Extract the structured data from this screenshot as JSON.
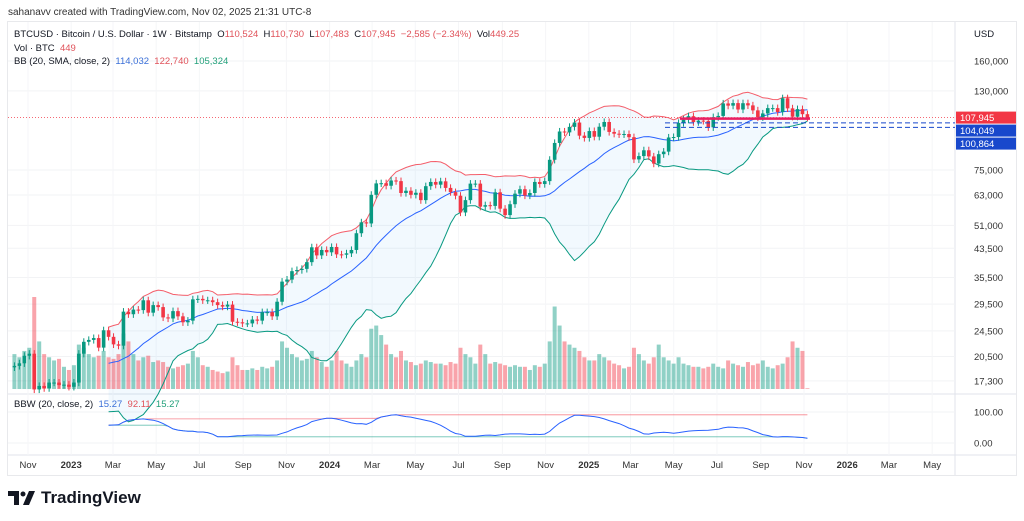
{
  "credit": "sahanavv created with TradingView.com, Nov 02, 2025 21:31 UTC-8",
  "legend": {
    "symbol": "BTCUSD · Bitcoin / U.S. Dollar · 1W · Bitstamp",
    "o_label": "O",
    "o": "110,524",
    "h_label": "H",
    "h": "110,730",
    "l_label": "L",
    "l": "107,483",
    "c_label": "C",
    "c": "107,945",
    "change": "−2,585 (−2.34%)",
    "vol_label": "Vol",
    "vol": "449.25",
    "vol_line": "Vol · BTC",
    "vol_value": "449",
    "bb_label": "BB (20, SMA, close, 2)",
    "bb_basis": "114,032",
    "bb_upper": "122,740",
    "bb_lower": "105,324"
  },
  "bbw_legend": {
    "label": "BBW (20, close, 2)",
    "bbw": "15.27",
    "highest": "92.11",
    "lowest": "15.27"
  },
  "axis": {
    "currency": "USD",
    "price_ticks": [
      "160,000",
      "130,000",
      "75,000",
      "63,000",
      "51,000",
      "43,500",
      "35,500",
      "29,500",
      "24,500",
      "20,500",
      "17,300"
    ],
    "bbw_ticks": [
      "100.00",
      "0.00"
    ],
    "time_ticks": [
      {
        "label": "Nov",
        "date": "2022-11-01"
      },
      {
        "label": "2023",
        "date": "2023-01-01",
        "bold": true
      },
      {
        "label": "Mar",
        "date": "2023-03-01"
      },
      {
        "label": "May",
        "date": "2023-05-01"
      },
      {
        "label": "Jul",
        "date": "2023-07-01"
      },
      {
        "label": "Sep",
        "date": "2023-09-01"
      },
      {
        "label": "Nov",
        "date": "2023-11-01"
      },
      {
        "label": "2024",
        "date": "2024-01-01",
        "bold": true
      },
      {
        "label": "Mar",
        "date": "2024-03-01"
      },
      {
        "label": "May",
        "date": "2024-05-01"
      },
      {
        "label": "Jul",
        "date": "2024-07-01"
      },
      {
        "label": "Sep",
        "date": "2024-09-01"
      },
      {
        "label": "Nov",
        "date": "2024-11-01"
      },
      {
        "label": "2025",
        "date": "2025-01-01",
        "bold": true
      },
      {
        "label": "Mar",
        "date": "2025-03-01"
      },
      {
        "label": "May",
        "date": "2025-05-01"
      },
      {
        "label": "Jul",
        "date": "2025-07-01"
      },
      {
        "label": "Sep",
        "date": "2025-09-01"
      },
      {
        "label": "Nov",
        "date": "2025-11-01"
      },
      {
        "label": "2026",
        "date": "2026-01-01",
        "bold": true
      },
      {
        "label": "Mar",
        "date": "2026-03-01"
      },
      {
        "label": "May",
        "date": "2026-05-01"
      }
    ]
  },
  "price_labels": [
    {
      "value": 107945,
      "text": "107,945",
      "color": "#f23645"
    },
    {
      "value": 104049,
      "text": "104,049",
      "color": "#1848cc"
    },
    {
      "value": 100864,
      "text": "100,864",
      "color": "#1848cc"
    }
  ],
  "brand": "TradingView",
  "chart_data": {
    "type": "candlestick",
    "interval": "1W",
    "x_start": "2022-10-10",
    "yscale": "log",
    "ylim": [
      16500,
      175000
    ],
    "colors": {
      "up": "#089981",
      "down": "#f23645",
      "bb_basis": "#2962ff",
      "bb_upper": "#f23645",
      "bb_lower": "#089981",
      "bbw": "#2962ff"
    },
    "close": [
      19200,
      19550,
      20600,
      20900,
      16300,
      16700,
      16450,
      17100,
      17100,
      16800,
      16850,
      16600,
      17100,
      20900,
      22700,
      23000,
      23300,
      21800,
      24600,
      23500,
      22300,
      22100,
      28000,
      27500,
      28400,
      28300,
      30300,
      27800,
      29300,
      28900,
      26900,
      26700,
      28100,
      27100,
      26000,
      26300,
      30500,
      30600,
      30300,
      30300,
      29900,
      29300,
      29000,
      29400,
      26100,
      26000,
      25800,
      25800,
      26500,
      26300,
      27900,
      27900,
      27100,
      30000,
      34500,
      35000,
      37100,
      37400,
      37700,
      39500,
      43800,
      41400,
      43000,
      42300,
      43900,
      41700,
      41600,
      42000,
      43000,
      48300,
      52100,
      51700,
      63100,
      68300,
      68400,
      67200,
      69700,
      69400,
      63900,
      64900,
      63100,
      64000,
      60800,
      67000,
      69000,
      67700,
      69300,
      66200,
      64300,
      62700,
      55800,
      60800,
      68200,
      68200,
      58100,
      58700,
      58400,
      64200,
      57300,
      54800,
      59100,
      63600,
      65600,
      62800,
      63900,
      69000,
      68000,
      69400,
      80500,
      90500,
      98000,
      97400,
      101200,
      104300,
      95200,
      93700,
      98300,
      94500,
      101300,
      104700,
      97700,
      96500,
      96100,
      96300,
      94200,
      80700,
      82600,
      86000,
      82400,
      78400,
      83700,
      85200,
      94000,
      94300,
      104000,
      106400,
      109000,
      104600,
      105700,
      105500,
      100900,
      108300,
      109200,
      119100,
      117300,
      119400,
      114200,
      119300,
      117500,
      113500,
      108200,
      111100,
      115300,
      115300,
      112200,
      123500,
      115100,
      108600,
      114500,
      110524,
      107945
    ],
    "volume": [
      22,
      20,
      24,
      26,
      58,
      30,
      22,
      20,
      18,
      19,
      14,
      12,
      15,
      28,
      26,
      22,
      20,
      21,
      24,
      20,
      19,
      22,
      35,
      30,
      22,
      18,
      20,
      21,
      17,
      18,
      17,
      14,
      13,
      14,
      15,
      16,
      24,
      20,
      15,
      14,
      12,
      11,
      10,
      11,
      20,
      15,
      12,
      12,
      13,
      12,
      14,
      13,
      14,
      18,
      30,
      26,
      22,
      20,
      18,
      19,
      24,
      20,
      17,
      14,
      18,
      24,
      18,
      16,
      14,
      18,
      22,
      20,
      38,
      40,
      34,
      28,
      22,
      20,
      24,
      18,
      17,
      15,
      16,
      18,
      17,
      16,
      16,
      15,
      17,
      16,
      26,
      22,
      20,
      16,
      28,
      22,
      16,
      17,
      16,
      15,
      14,
      15,
      14,
      14,
      12,
      15,
      14,
      16,
      30,
      52,
      40,
      30,
      28,
      26,
      24,
      20,
      18,
      18,
      22,
      20,
      18,
      16,
      15,
      13,
      14,
      26,
      22,
      18,
      16,
      20,
      28,
      20,
      18,
      16,
      20,
      16,
      15,
      14,
      14,
      13,
      14,
      16,
      14,
      13,
      18,
      16,
      15,
      14,
      17,
      15,
      16,
      18,
      14,
      13,
      15,
      16,
      20,
      30,
      26,
      24,
      0.449
    ]
  }
}
